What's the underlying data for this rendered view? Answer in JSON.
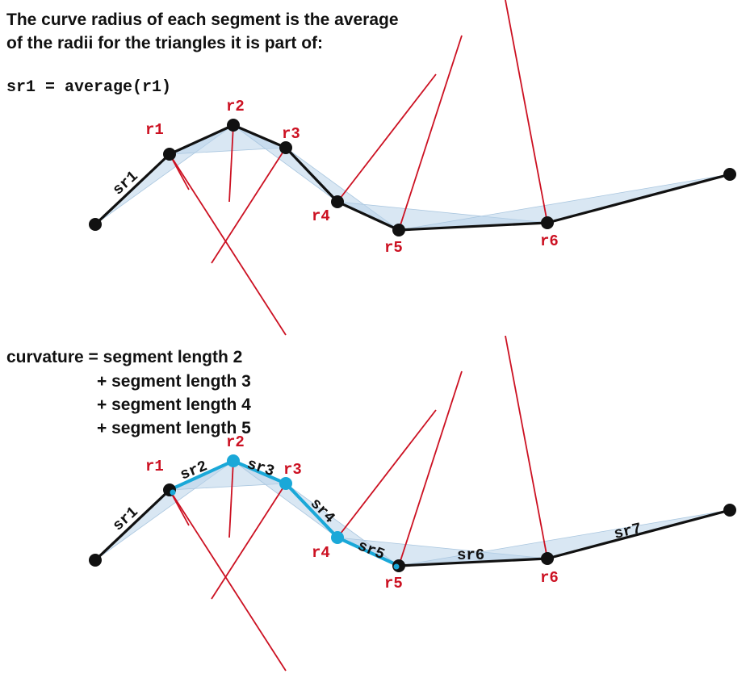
{
  "intro_line1": "The curve radius of each segment is the average",
  "intro_line2": "of the radii for the triangles it is part of:",
  "formula": "sr1 = average(r1)",
  "curvature": [
    "curvature = segment length 2",
    "+ segment length 3",
    "+ segment length 4",
    "+ segment length 5"
  ],
  "radius_labels": [
    "r1",
    "r2",
    "r3",
    "r4",
    "r5",
    "r6"
  ],
  "segment_labels": [
    "sr1",
    "sr2",
    "sr3",
    "sr4",
    "sr5",
    "sr6",
    "sr7"
  ],
  "colors": {
    "polyline": "#111111",
    "radius_line": "#cc1122",
    "triangle_fill": "#b9d4ea",
    "highlight": "#1aa8d8",
    "label_red": "#cc1122"
  }
}
